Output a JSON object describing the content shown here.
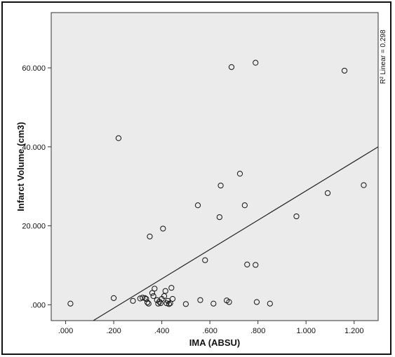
{
  "chart_data": {
    "type": "scatter",
    "xlabel": "IMA (ABSU)",
    "ylabel": "Infarct Volume (cm3)",
    "xlim": [
      -0.06,
      1.3
    ],
    "ylim": [
      -4,
      74
    ],
    "xticks": [
      0.0,
      0.2,
      0.4,
      0.6,
      0.8,
      1.0,
      1.2
    ],
    "xtick_labels": [
      ".000",
      ".200",
      ".400",
      ".600",
      ".800",
      "1.000",
      "1.200"
    ],
    "yticks": [
      0,
      20,
      40,
      60
    ],
    "ytick_labels": [
      ".000",
      "20.000",
      "40.000",
      "60.000"
    ],
    "grid": false,
    "background": "#ebebeb",
    "marker": "open-circle",
    "fit_line": {
      "label": "R² Linear = 0.298",
      "r2": 0.298,
      "x": [
        0.115,
        1.3
      ],
      "y": [
        -4,
        40
      ]
    },
    "points": [
      [
        0.02,
        0.3
      ],
      [
        0.2,
        1.7
      ],
      [
        0.22,
        42.2
      ],
      [
        0.28,
        1.0
      ],
      [
        0.31,
        1.6
      ],
      [
        0.32,
        1.8
      ],
      [
        0.33,
        1.7
      ],
      [
        0.335,
        1.5
      ],
      [
        0.34,
        0.6
      ],
      [
        0.345,
        0.3
      ],
      [
        0.35,
        17.3
      ],
      [
        0.36,
        3.0
      ],
      [
        0.365,
        2.2
      ],
      [
        0.37,
        4.1
      ],
      [
        0.38,
        1.2
      ],
      [
        0.385,
        0.3
      ],
      [
        0.39,
        0.8
      ],
      [
        0.395,
        0.4
      ],
      [
        0.4,
        1.5
      ],
      [
        0.405,
        19.3
      ],
      [
        0.41,
        2.2
      ],
      [
        0.415,
        3.5
      ],
      [
        0.42,
        0.4
      ],
      [
        0.425,
        1.0
      ],
      [
        0.43,
        0.2
      ],
      [
        0.435,
        0.4
      ],
      [
        0.44,
        4.3
      ],
      [
        0.445,
        1.5
      ],
      [
        0.5,
        0.2
      ],
      [
        0.55,
        25.2
      ],
      [
        0.56,
        1.2
      ],
      [
        0.58,
        11.3
      ],
      [
        0.615,
        0.3
      ],
      [
        0.64,
        22.2
      ],
      [
        0.645,
        30.2
      ],
      [
        0.67,
        1.1
      ],
      [
        0.68,
        0.7
      ],
      [
        0.69,
        60.2
      ],
      [
        0.725,
        33.2
      ],
      [
        0.745,
        25.2
      ],
      [
        0.755,
        10.2
      ],
      [
        0.79,
        10.1
      ],
      [
        0.79,
        61.3
      ],
      [
        0.795,
        0.7
      ],
      [
        0.85,
        0.3
      ],
      [
        0.96,
        22.4
      ],
      [
        1.09,
        28.3
      ],
      [
        1.16,
        59.3
      ],
      [
        1.24,
        30.3
      ]
    ]
  }
}
